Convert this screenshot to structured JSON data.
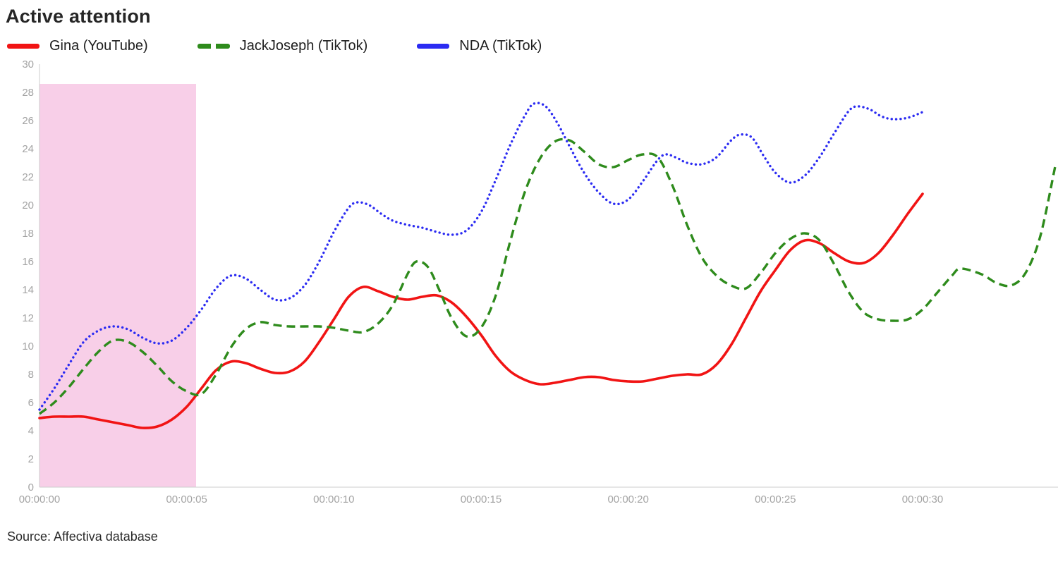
{
  "source": "Source: Affectiva database",
  "chart_data": {
    "type": "line",
    "title": "Active attention",
    "xlabel": "",
    "ylabel": "",
    "ylim": [
      0,
      30
    ],
    "x_max_seconds": 34.6,
    "grid": false,
    "legend_position": "top",
    "y_ticks": [
      0,
      2,
      4,
      6,
      8,
      10,
      12,
      14,
      16,
      18,
      20,
      22,
      24,
      26,
      28,
      30
    ],
    "x_ticks": [
      {
        "t": 0,
        "label": "00:00:00"
      },
      {
        "t": 5,
        "label": "00:00:05"
      },
      {
        "t": 10,
        "label": "00:00:10"
      },
      {
        "t": 15,
        "label": "00:00:15"
      },
      {
        "t": 20,
        "label": "00:00:20"
      },
      {
        "t": 25,
        "label": "00:00:25"
      },
      {
        "t": 30,
        "label": "00:00:30"
      }
    ],
    "highlight_region": {
      "t_start": 0,
      "t_end": 5.32,
      "v_bottom": 0,
      "v_top": 28.6,
      "color": "#f8cfe8"
    },
    "axis_color": "#cccccc",
    "series": [
      {
        "name": "Gina (YouTube)",
        "color": "#f11414",
        "style": "solid",
        "points": [
          [
            0,
            4.9
          ],
          [
            0.5,
            5.0
          ],
          [
            1,
            5.0
          ],
          [
            1.5,
            5.0
          ],
          [
            2,
            4.8
          ],
          [
            2.5,
            4.6
          ],
          [
            3,
            4.4
          ],
          [
            3.5,
            4.2
          ],
          [
            4,
            4.3
          ],
          [
            4.5,
            4.8
          ],
          [
            5,
            5.7
          ],
          [
            5.5,
            7.0
          ],
          [
            6,
            8.3
          ],
          [
            6.5,
            8.9
          ],
          [
            7,
            8.8
          ],
          [
            7.5,
            8.4
          ],
          [
            8,
            8.1
          ],
          [
            8.5,
            8.2
          ],
          [
            9,
            8.9
          ],
          [
            9.5,
            10.3
          ],
          [
            10,
            11.9
          ],
          [
            10.5,
            13.5
          ],
          [
            11,
            14.2
          ],
          [
            11.5,
            13.9
          ],
          [
            12,
            13.5
          ],
          [
            12.5,
            13.3
          ],
          [
            13,
            13.5
          ],
          [
            13.5,
            13.6
          ],
          [
            14,
            13.1
          ],
          [
            14.5,
            12.1
          ],
          [
            15,
            10.8
          ],
          [
            15.5,
            9.3
          ],
          [
            16,
            8.2
          ],
          [
            16.5,
            7.6
          ],
          [
            17,
            7.3
          ],
          [
            17.5,
            7.4
          ],
          [
            18,
            7.6
          ],
          [
            18.5,
            7.8
          ],
          [
            19,
            7.8
          ],
          [
            19.5,
            7.6
          ],
          [
            20,
            7.5
          ],
          [
            20.5,
            7.5
          ],
          [
            21,
            7.7
          ],
          [
            21.5,
            7.9
          ],
          [
            22,
            8.0
          ],
          [
            22.5,
            8.0
          ],
          [
            23,
            8.7
          ],
          [
            23.5,
            10.1
          ],
          [
            24,
            12.0
          ],
          [
            24.5,
            13.9
          ],
          [
            25,
            15.4
          ],
          [
            25.5,
            16.8
          ],
          [
            26,
            17.5
          ],
          [
            26.5,
            17.3
          ],
          [
            27,
            16.6
          ],
          [
            27.5,
            16.0
          ],
          [
            28,
            15.9
          ],
          [
            28.5,
            16.6
          ],
          [
            29,
            17.9
          ],
          [
            29.5,
            19.4
          ],
          [
            30,
            20.8
          ]
        ]
      },
      {
        "name": "JackJoseph (TikTok)",
        "color": "#2e8b1c",
        "style": "dashed",
        "points": [
          [
            0,
            5.2
          ],
          [
            0.5,
            6.0
          ],
          [
            1,
            7.1
          ],
          [
            1.5,
            8.4
          ],
          [
            2,
            9.6
          ],
          [
            2.5,
            10.4
          ],
          [
            3,
            10.3
          ],
          [
            3.5,
            9.6
          ],
          [
            4,
            8.6
          ],
          [
            4.5,
            7.5
          ],
          [
            5,
            6.8
          ],
          [
            5.5,
            6.6
          ],
          [
            6,
            8.0
          ],
          [
            6.5,
            9.9
          ],
          [
            7,
            11.2
          ],
          [
            7.5,
            11.7
          ],
          [
            8,
            11.5
          ],
          [
            8.5,
            11.4
          ],
          [
            9,
            11.4
          ],
          [
            9.5,
            11.4
          ],
          [
            10,
            11.3
          ],
          [
            10.5,
            11.1
          ],
          [
            11,
            11.0
          ],
          [
            11.5,
            11.6
          ],
          [
            12,
            12.9
          ],
          [
            12.5,
            15.1
          ],
          [
            12.8,
            16.0
          ],
          [
            13.2,
            15.6
          ],
          [
            13.6,
            13.9
          ],
          [
            14,
            12.0
          ],
          [
            14.5,
            10.7
          ],
          [
            15,
            11.3
          ],
          [
            15.5,
            13.6
          ],
          [
            16,
            17.5
          ],
          [
            16.5,
            21.0
          ],
          [
            17,
            23.3
          ],
          [
            17.5,
            24.5
          ],
          [
            18,
            24.6
          ],
          [
            18.5,
            23.8
          ],
          [
            19,
            22.9
          ],
          [
            19.5,
            22.7
          ],
          [
            20,
            23.2
          ],
          [
            20.5,
            23.6
          ],
          [
            21,
            23.4
          ],
          [
            21.5,
            21.4
          ],
          [
            22,
            18.6
          ],
          [
            22.5,
            16.3
          ],
          [
            23,
            15.0
          ],
          [
            23.5,
            14.3
          ],
          [
            24,
            14.1
          ],
          [
            24.5,
            15.2
          ],
          [
            25,
            16.6
          ],
          [
            25.5,
            17.6
          ],
          [
            26,
            18.0
          ],
          [
            26.5,
            17.5
          ],
          [
            27,
            15.8
          ],
          [
            27.5,
            13.8
          ],
          [
            28,
            12.4
          ],
          [
            28.5,
            11.9
          ],
          [
            29,
            11.8
          ],
          [
            29.5,
            11.9
          ],
          [
            30,
            12.6
          ],
          [
            30.5,
            13.8
          ],
          [
            31,
            15.0
          ],
          [
            31.3,
            15.5
          ],
          [
            32,
            15.1
          ],
          [
            32.5,
            14.5
          ],
          [
            33,
            14.3
          ],
          [
            33.5,
            15.2
          ],
          [
            34,
            17.8
          ],
          [
            34.5,
            22.7
          ]
        ]
      },
      {
        "name": "NDA (TikTok)",
        "color": "#2b2bf2",
        "style": "dotted",
        "points": [
          [
            0,
            5.5
          ],
          [
            0.5,
            7.0
          ],
          [
            1,
            8.7
          ],
          [
            1.5,
            10.3
          ],
          [
            2,
            11.1
          ],
          [
            2.5,
            11.4
          ],
          [
            3,
            11.2
          ],
          [
            3.5,
            10.6
          ],
          [
            4,
            10.2
          ],
          [
            4.5,
            10.4
          ],
          [
            5,
            11.3
          ],
          [
            5.5,
            12.6
          ],
          [
            6,
            14.1
          ],
          [
            6.5,
            15.0
          ],
          [
            7,
            14.8
          ],
          [
            7.5,
            14.0
          ],
          [
            8,
            13.3
          ],
          [
            8.5,
            13.4
          ],
          [
            9,
            14.3
          ],
          [
            9.5,
            16.0
          ],
          [
            10,
            18.1
          ],
          [
            10.5,
            19.8
          ],
          [
            10.8,
            20.2
          ],
          [
            11.2,
            20.0
          ],
          [
            11.6,
            19.4
          ],
          [
            12,
            18.9
          ],
          [
            12.5,
            18.6
          ],
          [
            13,
            18.4
          ],
          [
            13.5,
            18.1
          ],
          [
            14,
            17.9
          ],
          [
            14.5,
            18.2
          ],
          [
            15,
            19.5
          ],
          [
            15.5,
            21.8
          ],
          [
            16,
            24.3
          ],
          [
            16.5,
            26.4
          ],
          [
            16.8,
            27.2
          ],
          [
            17.2,
            27.0
          ],
          [
            17.6,
            25.8
          ],
          [
            18,
            24.2
          ],
          [
            18.5,
            22.3
          ],
          [
            19,
            20.9
          ],
          [
            19.5,
            20.1
          ],
          [
            20,
            20.4
          ],
          [
            20.5,
            21.7
          ],
          [
            21,
            23.2
          ],
          [
            21.3,
            23.6
          ],
          [
            21.7,
            23.3
          ],
          [
            22,
            23.0
          ],
          [
            22.5,
            22.9
          ],
          [
            23,
            23.4
          ],
          [
            23.5,
            24.6
          ],
          [
            23.8,
            25.0
          ],
          [
            24.2,
            24.8
          ],
          [
            24.6,
            23.5
          ],
          [
            25,
            22.3
          ],
          [
            25.5,
            21.6
          ],
          [
            26,
            22.1
          ],
          [
            26.5,
            23.4
          ],
          [
            27,
            25.1
          ],
          [
            27.5,
            26.7
          ],
          [
            27.8,
            27.0
          ],
          [
            28.2,
            26.8
          ],
          [
            28.6,
            26.3
          ],
          [
            29,
            26.1
          ],
          [
            29.5,
            26.2
          ],
          [
            30,
            26.6
          ]
        ]
      }
    ]
  }
}
